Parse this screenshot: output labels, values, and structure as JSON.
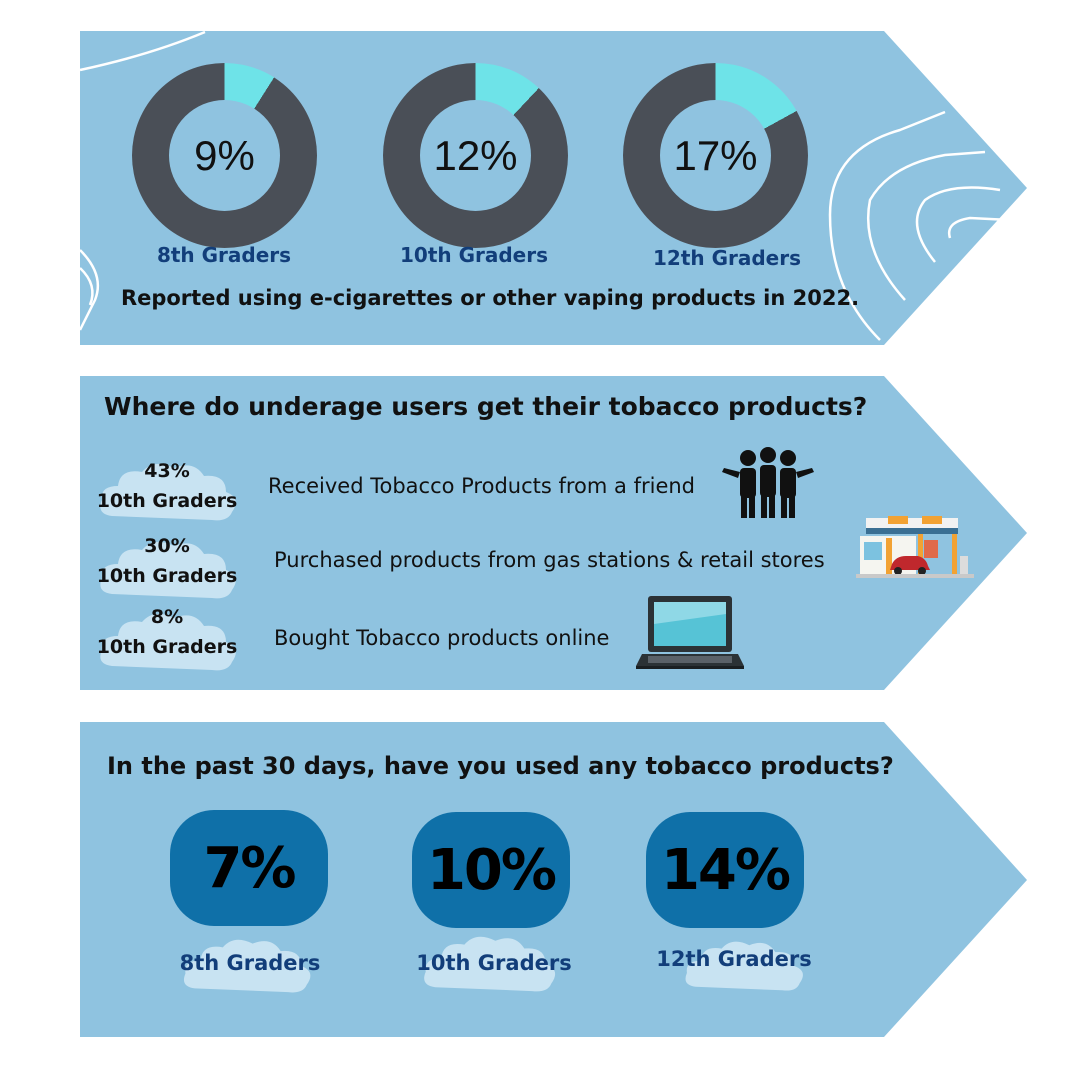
{
  "colors": {
    "panel": "#8fc3e0",
    "donut_dark": "#4a4f57",
    "donut_accent": "#6ee3e8",
    "pill": "#0f70a8",
    "label_blue": "#123e7a",
    "cloud": "#c8e3f2"
  },
  "section1": {
    "items": [
      {
        "percent": "9%",
        "value": 9,
        "label": "8th Graders"
      },
      {
        "percent": "12%",
        "value": 12,
        "label": "10th Graders"
      },
      {
        "percent": "17%",
        "value": 17,
        "label": "12th Graders"
      }
    ],
    "caption": "Reported using e-cigarettes or other vaping products in 2022."
  },
  "section2": {
    "heading": "Where do underage users get their tobacco products?",
    "items": [
      {
        "percent": "43%",
        "grade": "10th Graders",
        "text": "Received Tobacco Products from a friend",
        "icon": "friends-icon"
      },
      {
        "percent": "30%",
        "grade": "10th Graders",
        "text": "Purchased products from gas stations & retail stores",
        "icon": "gas-station-icon"
      },
      {
        "percent": "8%",
        "grade": "10th Graders",
        "text": "Bought Tobacco products online",
        "icon": "laptop-icon"
      }
    ]
  },
  "section3": {
    "heading": "In the past 30 days, have you used any tobacco products?",
    "items": [
      {
        "percent": "7%",
        "label": "8th Graders"
      },
      {
        "percent": "10%",
        "label": "10th Graders"
      },
      {
        "percent": "14%",
        "label": "12th Graders"
      }
    ]
  }
}
